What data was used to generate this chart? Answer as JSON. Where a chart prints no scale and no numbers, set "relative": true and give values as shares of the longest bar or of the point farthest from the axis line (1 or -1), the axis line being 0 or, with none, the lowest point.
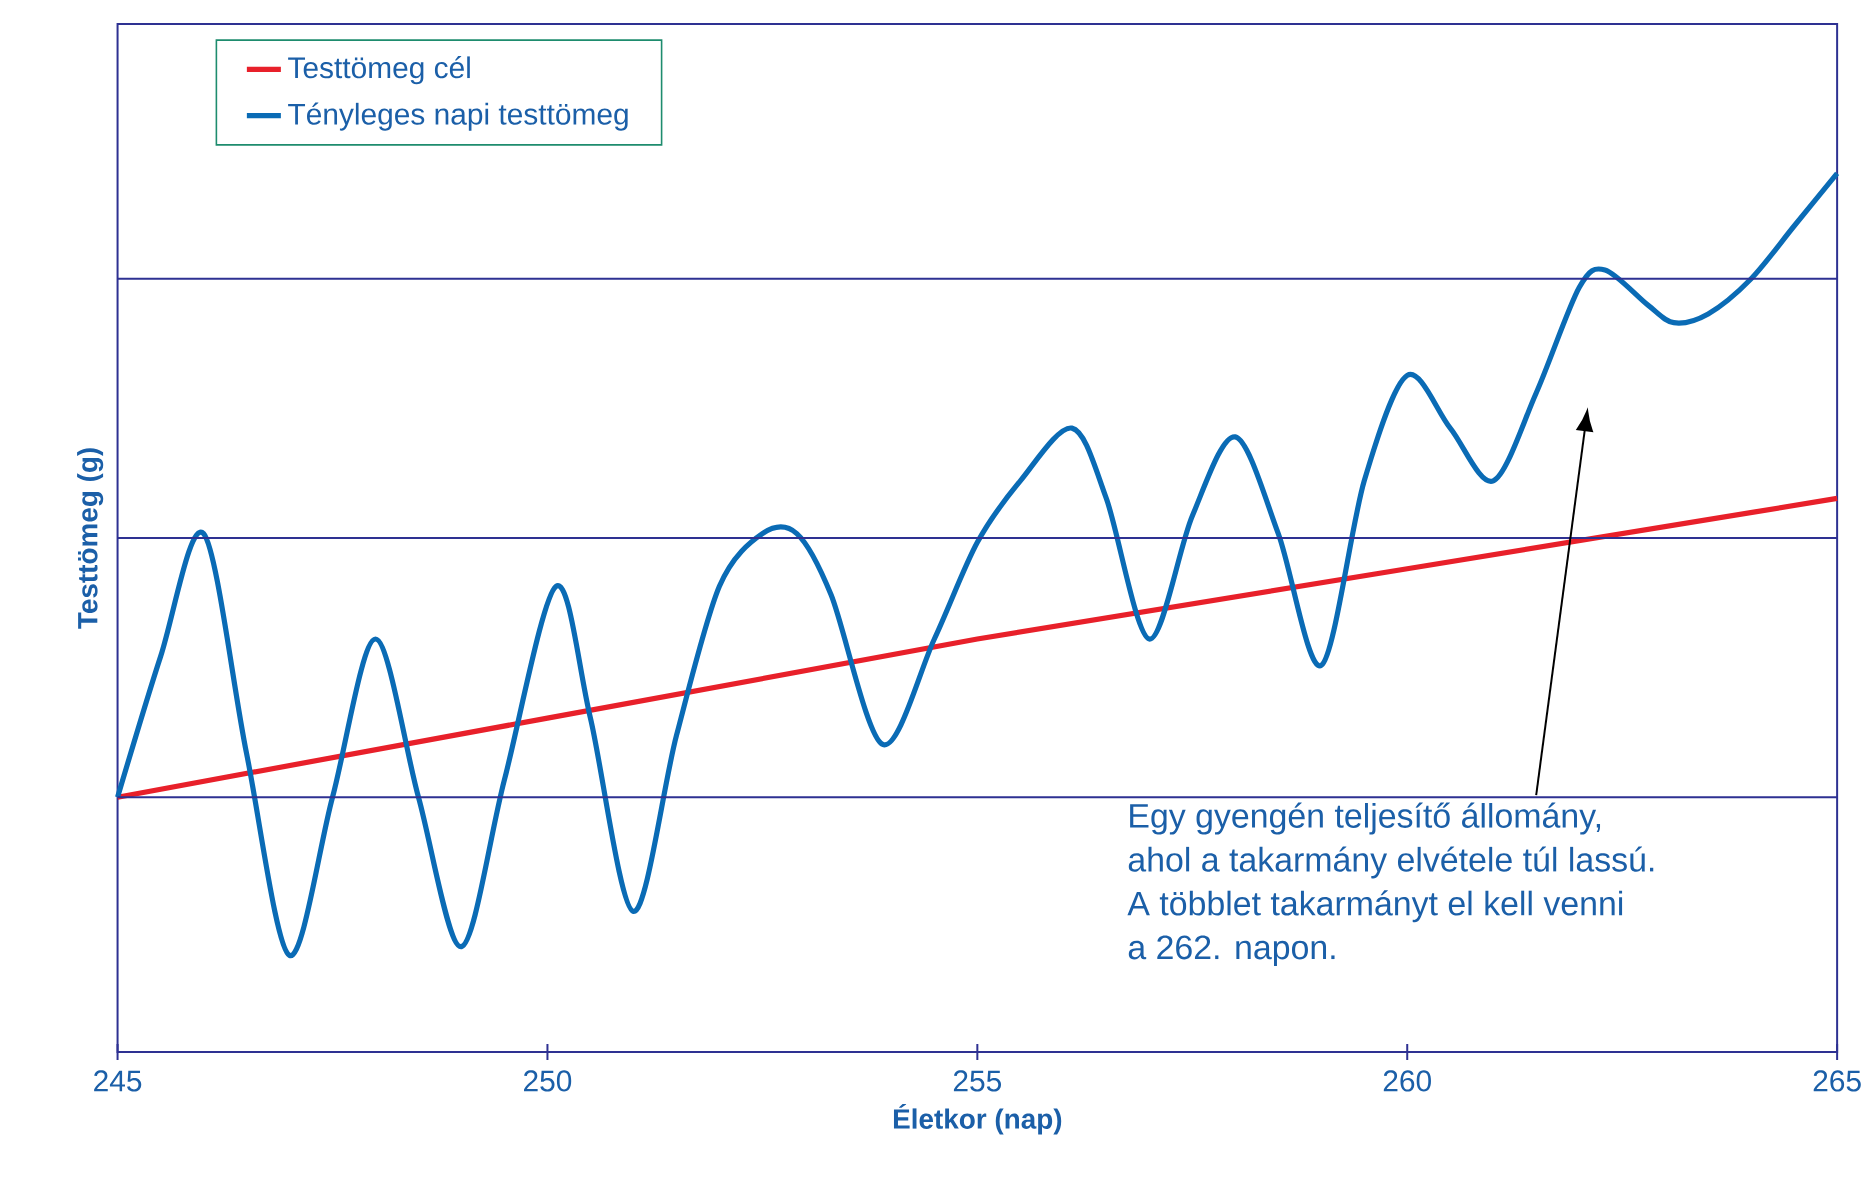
{
  "chart_data": {
    "type": "line",
    "relative": true,
    "xlabel": "Életkor (nap)",
    "ylabel": "Testtömeg (g)",
    "xlim": [
      245,
      265
    ],
    "xticks": [
      245,
      250,
      255,
      260,
      265
    ],
    "ref_lines": [
      {
        "axis": "y",
        "value": 0.29,
        "color": "#2e3192"
      },
      {
        "axis": "y",
        "value": 0.585,
        "color": "#2e3192"
      },
      {
        "axis": "y",
        "value": 0.88,
        "color": "#2e3192"
      }
    ],
    "legend": "top left",
    "marker": "none",
    "line_style": "solid",
    "series": [
      {
        "name": "Testtömeg cél",
        "color": "#e8202a",
        "x": [
          245,
          250,
          255,
          260,
          265
        ],
        "values": [
          0.29,
          0.38,
          0.47,
          0.55,
          0.63
        ]
      },
      {
        "name": "Tényleges napi testtömeg",
        "color": "#0a6bb5",
        "x": [
          245,
          245.5,
          246,
          246.5,
          247,
          247.5,
          248,
          248.5,
          249,
          249.5,
          250.1,
          250.5,
          251,
          251.5,
          252,
          252.5,
          252.9,
          253.3,
          253.9,
          254.5,
          255,
          255.5,
          256.1,
          256.5,
          257,
          257.5,
          258,
          258.5,
          259,
          259.5,
          260,
          260.5,
          261,
          261.5,
          262,
          262.3,
          262.8,
          263.1,
          263.5,
          264,
          264.5,
          265
        ],
        "values": [
          0.29,
          0.45,
          0.59,
          0.34,
          0.11,
          0.29,
          0.47,
          0.29,
          0.12,
          0.31,
          0.53,
          0.38,
          0.16,
          0.36,
          0.53,
          0.59,
          0.59,
          0.52,
          0.35,
          0.47,
          0.58,
          0.65,
          0.71,
          0.63,
          0.47,
          0.61,
          0.7,
          0.59,
          0.44,
          0.65,
          0.77,
          0.71,
          0.65,
          0.75,
          0.87,
          0.89,
          0.85,
          0.83,
          0.84,
          0.88,
          0.94,
          1.0
        ]
      }
    ],
    "annotations": [
      "Egy gyengén teljesítő állomány,",
      "ahol a takarmány elvétele túl lassú.",
      "A többlet takarmányt el kell venni",
      "a 262. napon."
    ]
  }
}
